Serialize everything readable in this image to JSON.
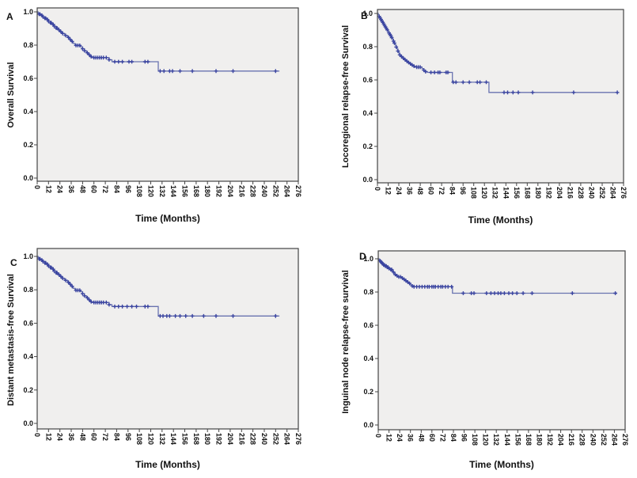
{
  "figure": {
    "background": "#ffffff",
    "description_labels": [
      "A",
      "B",
      "C",
      "D"
    ]
  },
  "style": {
    "curve_color": "#6973b0",
    "censor_color": "#3a44a0",
    "plot_bg": "#f0efee",
    "axis_color": "#444444",
    "text_color": "#111111"
  },
  "chart_data": [
    {
      "type": "line",
      "subtype": "kaplan-meier-step",
      "panel_label": "A",
      "ylabel": "Overall Survival",
      "xlabel": "Time (Months)",
      "xlim": [
        0,
        276
      ],
      "ylim": [
        0.0,
        1.0
      ],
      "grid": false,
      "legend": false,
      "x_ticks": [
        0,
        12,
        24,
        36,
        48,
        60,
        72,
        84,
        96,
        108,
        120,
        132,
        144,
        156,
        168,
        180,
        192,
        204,
        216,
        228,
        240,
        252,
        264,
        276
      ],
      "y_ticks": [
        "0.0",
        "0.2",
        "0.4",
        "0.6",
        "0.8",
        "1.0"
      ],
      "steps": [
        [
          0,
          1.0
        ],
        [
          1,
          0.993
        ],
        [
          2,
          0.986
        ],
        [
          4,
          0.979
        ],
        [
          6,
          0.971
        ],
        [
          8,
          0.962
        ],
        [
          10,
          0.953
        ],
        [
          12,
          0.944
        ],
        [
          14,
          0.934
        ],
        [
          16,
          0.924
        ],
        [
          18,
          0.914
        ],
        [
          20,
          0.903
        ],
        [
          22,
          0.892
        ],
        [
          24,
          0.881
        ],
        [
          26,
          0.87
        ],
        [
          29,
          0.858
        ],
        [
          32,
          0.846
        ],
        [
          34,
          0.834
        ],
        [
          36,
          0.822
        ],
        [
          38,
          0.81
        ],
        [
          40,
          0.798
        ],
        [
          46,
          0.79
        ],
        [
          48,
          0.778
        ],
        [
          50,
          0.766
        ],
        [
          52,
          0.754
        ],
        [
          54,
          0.742
        ],
        [
          56,
          0.731
        ],
        [
          58,
          0.725
        ],
        [
          76,
          0.712
        ],
        [
          79,
          0.7
        ],
        [
          128,
          0.644
        ],
        [
          256,
          0.644
        ]
      ],
      "censor_times": [
        2,
        3,
        5,
        6,
        8,
        9,
        11,
        12,
        14,
        15,
        17,
        18,
        20,
        21,
        23,
        25,
        27,
        30,
        33,
        35,
        37,
        41,
        43,
        45,
        48,
        50,
        53,
        55,
        57,
        60,
        62,
        64,
        66,
        68,
        70,
        73,
        76,
        82,
        86,
        90,
        97,
        100,
        114,
        117,
        130,
        134,
        140,
        143,
        151,
        164,
        189,
        207,
        252
      ]
    },
    {
      "type": "line",
      "subtype": "kaplan-meier-step",
      "panel_label": "B",
      "ylabel": "Locoregional relapse-free Survival",
      "xlabel": "Time (Months)",
      "xlim": [
        0,
        276
      ],
      "ylim": [
        0.0,
        1.0
      ],
      "grid": false,
      "legend": false,
      "x_ticks": [
        0,
        12,
        24,
        36,
        48,
        60,
        72,
        84,
        96,
        108,
        120,
        132,
        144,
        156,
        168,
        180,
        192,
        204,
        216,
        228,
        240,
        252,
        264,
        276
      ],
      "y_ticks": [
        "0.0",
        "0.2",
        "0.4",
        "0.6",
        "0.8",
        "1.0"
      ],
      "steps": [
        [
          0,
          1.0
        ],
        [
          1,
          0.991
        ],
        [
          2,
          0.982
        ],
        [
          3,
          0.973
        ],
        [
          4,
          0.964
        ],
        [
          5,
          0.955
        ],
        [
          6,
          0.946
        ],
        [
          7,
          0.937
        ],
        [
          8,
          0.928
        ],
        [
          9,
          0.919
        ],
        [
          10,
          0.91
        ],
        [
          11,
          0.901
        ],
        [
          12,
          0.892
        ],
        [
          13,
          0.883
        ],
        [
          14,
          0.874
        ],
        [
          15,
          0.865
        ],
        [
          16,
          0.855
        ],
        [
          17,
          0.845
        ],
        [
          18,
          0.834
        ],
        [
          19,
          0.822
        ],
        [
          20,
          0.81
        ],
        [
          21,
          0.798
        ],
        [
          22,
          0.786
        ],
        [
          23,
          0.774
        ],
        [
          24,
          0.762
        ],
        [
          25,
          0.751
        ],
        [
          26,
          0.741
        ],
        [
          28,
          0.731
        ],
        [
          30,
          0.722
        ],
        [
          32,
          0.713
        ],
        [
          34,
          0.705
        ],
        [
          36,
          0.697
        ],
        [
          38,
          0.69
        ],
        [
          40,
          0.683
        ],
        [
          42,
          0.677
        ],
        [
          50,
          0.668
        ],
        [
          52,
          0.659
        ],
        [
          54,
          0.65
        ],
        [
          56,
          0.645
        ],
        [
          84,
          0.586
        ],
        [
          125,
          0.525
        ],
        [
          269,
          0.525
        ]
      ],
      "censor_times": [
        2,
        3,
        4,
        5,
        6,
        7,
        8,
        9,
        10,
        11,
        13,
        14,
        15,
        16,
        18,
        19,
        21,
        23,
        25,
        27,
        29,
        31,
        33,
        35,
        37,
        39,
        41,
        44,
        46,
        48,
        52,
        54,
        60,
        64,
        68,
        70,
        77,
        79,
        85,
        88,
        96,
        103,
        112,
        115,
        122,
        142,
        146,
        152,
        158,
        174,
        220,
        269
      ]
    },
    {
      "type": "line",
      "subtype": "kaplan-meier-step",
      "panel_label": "C",
      "ylabel": "Distant metastasis-free Survival",
      "xlabel": "Time (Months)",
      "xlim": [
        0,
        276
      ],
      "ylim": [
        0.0,
        1.0
      ],
      "grid": false,
      "legend": false,
      "x_ticks": [
        0,
        12,
        24,
        36,
        48,
        60,
        72,
        84,
        96,
        108,
        120,
        132,
        144,
        156,
        168,
        180,
        192,
        204,
        216,
        228,
        240,
        252,
        264,
        276
      ],
      "y_ticks": [
        "0.0",
        "0.2",
        "0.4",
        "0.6",
        "0.8",
        "1.0"
      ],
      "steps": [
        [
          0,
          1.0
        ],
        [
          1,
          0.993
        ],
        [
          2,
          0.985
        ],
        [
          4,
          0.978
        ],
        [
          6,
          0.97
        ],
        [
          8,
          0.961
        ],
        [
          10,
          0.952
        ],
        [
          12,
          0.943
        ],
        [
          14,
          0.933
        ],
        [
          16,
          0.923
        ],
        [
          18,
          0.913
        ],
        [
          20,
          0.902
        ],
        [
          22,
          0.891
        ],
        [
          24,
          0.88
        ],
        [
          26,
          0.869
        ],
        [
          29,
          0.857
        ],
        [
          32,
          0.845
        ],
        [
          34,
          0.833
        ],
        [
          36,
          0.821
        ],
        [
          38,
          0.809
        ],
        [
          40,
          0.797
        ],
        [
          46,
          0.789
        ],
        [
          48,
          0.777
        ],
        [
          50,
          0.764
        ],
        [
          52,
          0.752
        ],
        [
          54,
          0.74
        ],
        [
          56,
          0.729
        ],
        [
          58,
          0.724
        ],
        [
          76,
          0.711
        ],
        [
          79,
          0.7
        ],
        [
          128,
          0.643
        ],
        [
          256,
          0.643
        ]
      ],
      "censor_times": [
        2,
        3,
        5,
        6,
        8,
        9,
        11,
        12,
        14,
        15,
        17,
        18,
        20,
        21,
        23,
        25,
        27,
        30,
        33,
        35,
        37,
        41,
        43,
        45,
        48,
        50,
        53,
        55,
        57,
        60,
        62,
        64,
        66,
        68,
        70,
        73,
        76,
        82,
        86,
        90,
        95,
        100,
        105,
        114,
        117,
        130,
        133,
        137,
        140,
        146,
        151,
        157,
        164,
        176,
        189,
        207,
        252
      ]
    },
    {
      "type": "line",
      "subtype": "kaplan-meier-step",
      "panel_label": "D",
      "ylabel": "Inguinal node relapse-free survival",
      "xlabel": "Time (Months)",
      "xlim": [
        0,
        276
      ],
      "ylim": [
        0.0,
        1.0
      ],
      "grid": false,
      "legend": false,
      "x_ticks": [
        0,
        12,
        24,
        36,
        48,
        60,
        72,
        84,
        96,
        108,
        120,
        132,
        144,
        156,
        168,
        180,
        192,
        204,
        216,
        228,
        240,
        252,
        264,
        276
      ],
      "y_ticks": [
        "0.0",
        "0.2",
        "0.4",
        "0.6",
        "0.8",
        "1.0"
      ],
      "steps": [
        [
          0,
          1.0
        ],
        [
          1,
          0.994
        ],
        [
          2,
          0.988
        ],
        [
          3,
          0.982
        ],
        [
          4,
          0.976
        ],
        [
          5,
          0.97
        ],
        [
          6,
          0.963
        ],
        [
          8,
          0.956
        ],
        [
          10,
          0.949
        ],
        [
          12,
          0.942
        ],
        [
          14,
          0.935
        ],
        [
          16,
          0.92
        ],
        [
          18,
          0.905
        ],
        [
          20,
          0.898
        ],
        [
          22,
          0.891
        ],
        [
          26,
          0.884
        ],
        [
          28,
          0.876
        ],
        [
          30,
          0.868
        ],
        [
          32,
          0.86
        ],
        [
          34,
          0.852
        ],
        [
          36,
          0.844
        ],
        [
          38,
          0.836
        ],
        [
          40,
          0.832
        ],
        [
          83,
          0.793
        ],
        [
          267,
          0.793
        ]
      ],
      "censor_times": [
        2,
        3,
        4,
        5,
        6,
        7,
        8,
        9,
        10,
        11,
        12,
        14,
        15,
        17,
        19,
        21,
        23,
        25,
        27,
        29,
        31,
        33,
        35,
        38,
        40,
        43,
        46,
        49,
        52,
        55,
        57,
        60,
        62,
        64,
        67,
        70,
        72,
        75,
        78,
        82,
        95,
        104,
        107,
        121,
        126,
        130,
        134,
        137,
        141,
        146,
        150,
        155,
        162,
        172,
        217,
        265
      ]
    }
  ]
}
